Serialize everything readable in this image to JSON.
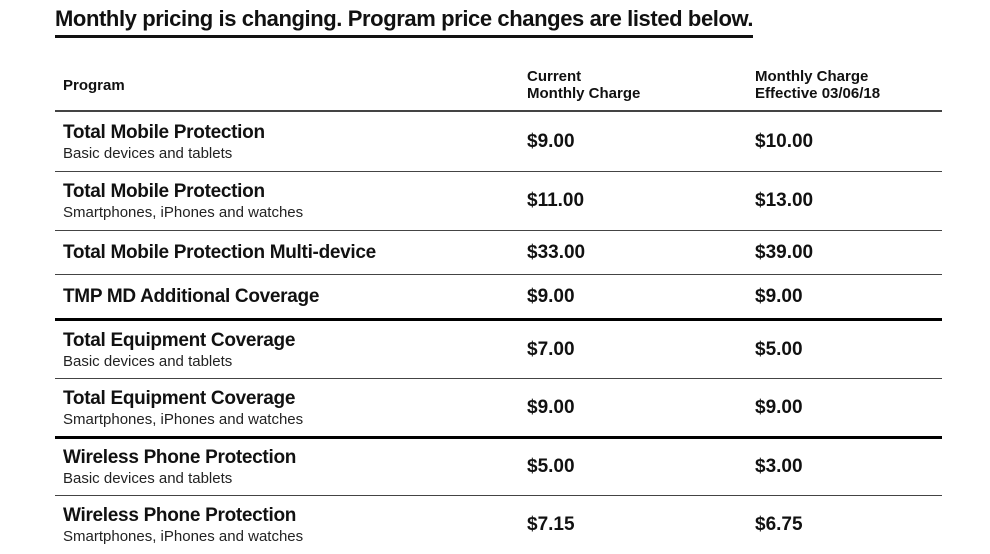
{
  "header": {
    "title": "Monthly pricing is changing. Program price changes are listed below."
  },
  "table": {
    "columns": [
      [
        "Program"
      ],
      [
        "Current",
        "Monthly Charge"
      ],
      [
        "Monthly Charge",
        "Effective 03/06/18"
      ]
    ],
    "groups": [
      {
        "rows": [
          {
            "name": "Total Mobile Protection",
            "detail": "Basic devices and tablets",
            "current": "$9.00",
            "effective": "$10.00"
          },
          {
            "name": "Total Mobile Protection",
            "detail": "Smartphones, iPhones and watches",
            "current": "$11.00",
            "effective": "$13.00"
          },
          {
            "name": "Total Mobile Protection Multi-device",
            "current": "$33.00",
            "effective": "$39.00"
          },
          {
            "name": "TMP MD Additional Coverage",
            "current": "$9.00",
            "effective": "$9.00"
          }
        ]
      },
      {
        "rows": [
          {
            "name": "Total Equipment Coverage",
            "detail": "Basic devices and tablets",
            "current": "$7.00",
            "effective": "$5.00"
          },
          {
            "name": "Total Equipment Coverage",
            "detail": "Smartphones, iPhones and watches",
            "current": "$9.00",
            "effective": "$9.00"
          }
        ]
      },
      {
        "rows": [
          {
            "name": "Wireless Phone Protection",
            "detail": "Basic devices and tablets",
            "current": "$5.00",
            "effective": "$3.00"
          },
          {
            "name": "Wireless Phone Protection",
            "detail": "Smartphones, iPhones and watches",
            "current": "$7.15",
            "effective": "$6.75"
          }
        ]
      }
    ]
  }
}
